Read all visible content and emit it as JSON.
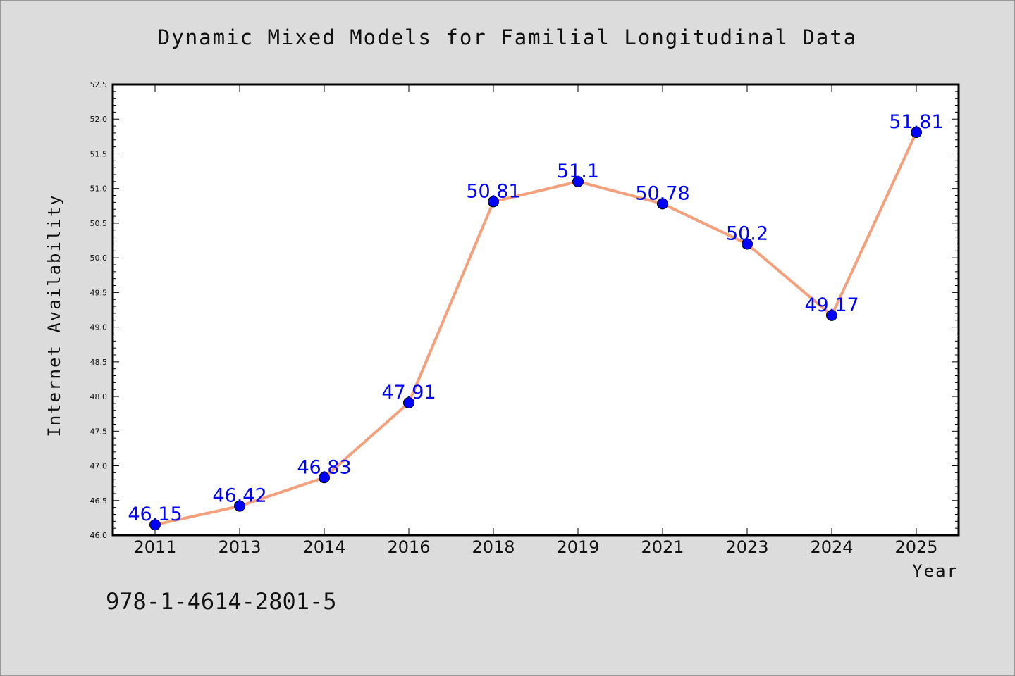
{
  "chart_data": {
    "type": "line",
    "title": "Dynamic Mixed Models for Familial Longitudinal Data",
    "xlabel": "Year",
    "ylabel": "Internet Availability",
    "categories": [
      "2011",
      "2013",
      "2014",
      "2016",
      "2018",
      "2019",
      "2021",
      "2023",
      "2024",
      "2025"
    ],
    "series": [
      {
        "values": [
          46.15,
          46.42,
          46.83,
          47.91,
          50.81,
          51.1,
          50.78,
          50.2,
          49.17,
          51.81
        ],
        "data_labels": [
          "46.15",
          "46.42",
          "46.83",
          "47.91",
          "50.81",
          "51.1",
          "50.78",
          "50.2",
          "49.17",
          "51.81"
        ]
      }
    ],
    "ylim": [
      46.0,
      52.5
    ],
    "yticks": [
      "46.0",
      "46.5",
      "47.0",
      "47.5",
      "48.0",
      "48.5",
      "49.0",
      "49.5",
      "50.0",
      "50.5",
      "51.0",
      "51.5",
      "52.0",
      "52.5"
    ],
    "grid": false,
    "legend": "none",
    "colors": {
      "line": "#f4a07c",
      "marker": "#0000ff",
      "data_label": "#0000ff",
      "background": "#dcdcdc",
      "plot_background": "#ffffff"
    }
  },
  "footnote": "978-1-4614-2801-5"
}
